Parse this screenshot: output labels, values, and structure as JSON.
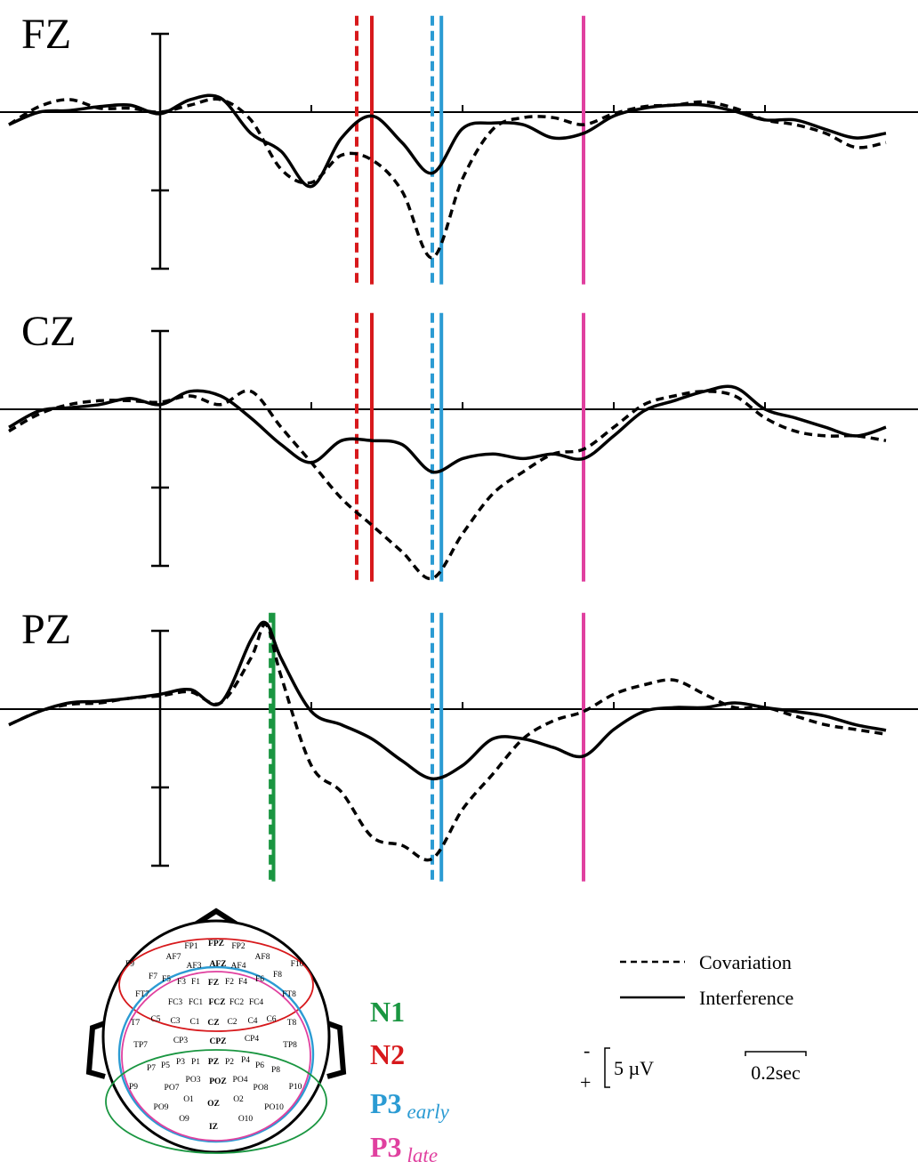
{
  "chart_data": [
    {
      "type": "line",
      "title": "FZ",
      "x": [
        -0.5,
        -0.4,
        -0.3,
        -0.2,
        -0.1,
        0,
        0.1,
        0.2,
        0.3,
        0.4,
        0.5,
        0.6,
        0.7,
        0.8,
        0.9,
        1.0,
        1.1,
        1.2,
        1.3,
        1.4,
        1.5,
        1.6,
        1.7,
        1.8,
        1.9,
        2.0,
        2.1,
        2.2,
        2.3,
        2.4
      ],
      "xlim": [
        -0.5,
        2.5
      ],
      "xticks": [
        0.5,
        1,
        1.5,
        2
      ],
      "ylim": [
        -12.3,
        22
      ],
      "yticks": [
        -10,
        0,
        10,
        20
      ],
      "y_inverted": true,
      "series": [
        {
          "name": "Covariation",
          "color": "#000000",
          "style": "dashed",
          "values": [
            1.6,
            -0.7,
            -1.6,
            -0.5,
            -0.5,
            0,
            -0.9,
            -1.6,
            1.0,
            7.3,
            9.0,
            5.5,
            6.1,
            10.1,
            18.6,
            8.5,
            2.2,
            0.7,
            0.7,
            1.6,
            0.2,
            -0.7,
            -0.9,
            -1.3,
            -0.5,
            1.0,
            1.6,
            2.7,
            4.5,
            3.9
          ]
        },
        {
          "name": "Interference",
          "color": "#000000",
          "style": "solid",
          "values": [
            1.6,
            0,
            -0.2,
            -0.7,
            -0.9,
            0.2,
            -1.6,
            -1.8,
            2.7,
            5.0,
            9.5,
            3.3,
            0.5,
            3.9,
            7.8,
            2.1,
            1.4,
            1.6,
            3.3,
            2.7,
            0.5,
            -0.5,
            -0.9,
            -0.9,
            -0.1,
            1.0,
            1.0,
            2.2,
            3.3,
            2.7
          ]
        }
      ],
      "markers": [
        {
          "x": 0.65,
          "color": "#d7191c",
          "style": "dashed"
        },
        {
          "x": 0.7,
          "color": "#d7191c",
          "style": "solid"
        },
        {
          "x": 0.9,
          "color": "#2b9bd3",
          "style": "dashed"
        },
        {
          "x": 0.93,
          "color": "#2b9bd3",
          "style": "solid"
        },
        {
          "x": 1.4,
          "color": "#e0409f",
          "style": "solid"
        }
      ]
    },
    {
      "type": "line",
      "title": "CZ",
      "x": [
        -0.5,
        -0.4,
        -0.3,
        -0.2,
        -0.1,
        0,
        0.1,
        0.2,
        0.3,
        0.4,
        0.5,
        0.6,
        0.7,
        0.8,
        0.9,
        1.0,
        1.1,
        1.2,
        1.3,
        1.4,
        1.5,
        1.6,
        1.7,
        1.8,
        1.9,
        2.0,
        2.1,
        2.2,
        2.3,
        2.4
      ],
      "xlim": [
        -0.5,
        2.5
      ],
      "xticks": [
        0.5,
        1,
        1.5,
        2
      ],
      "ylim": [
        -12.3,
        22
      ],
      "yticks": [
        -10,
        0,
        10,
        20
      ],
      "y_inverted": true,
      "series": [
        {
          "name": "Covariation",
          "color": "#000000",
          "style": "dashed",
          "values": [
            2.8,
            0.6,
            -0.6,
            -1.1,
            -1.1,
            -0.9,
            -1.7,
            -0.6,
            -2.3,
            2.3,
            6.8,
            11.4,
            14.8,
            18.2,
            21.6,
            15.9,
            10.8,
            8.0,
            5.7,
            5.1,
            2.3,
            -0.6,
            -1.7,
            -2.3,
            -1.7,
            1.1,
            2.8,
            3.4,
            3.4,
            4.0
          ]
        },
        {
          "name": "Interference",
          "color": "#000000",
          "style": "solid",
          "values": [
            2.3,
            0.2,
            -0.2,
            -0.6,
            -1.4,
            -0.6,
            -2.3,
            -1.7,
            1.1,
            4.5,
            6.8,
            4.0,
            4.0,
            4.5,
            8.0,
            6.3,
            5.7,
            6.3,
            5.7,
            6.3,
            3.4,
            0.2,
            -1.1,
            -2.3,
            -2.8,
            0,
            1.1,
            2.3,
            3.4,
            2.3
          ]
        }
      ],
      "markers": [
        {
          "x": 0.65,
          "color": "#d7191c",
          "style": "dashed"
        },
        {
          "x": 0.7,
          "color": "#d7191c",
          "style": "solid"
        },
        {
          "x": 0.9,
          "color": "#2b9bd3",
          "style": "dashed"
        },
        {
          "x": 0.93,
          "color": "#2b9bd3",
          "style": "solid"
        },
        {
          "x": 1.4,
          "color": "#e0409f",
          "style": "solid"
        }
      ]
    },
    {
      "type": "line",
      "title": "PZ",
      "x": [
        -0.5,
        -0.4,
        -0.3,
        -0.2,
        -0.1,
        0,
        0.1,
        0.2,
        0.3,
        0.35,
        0.4,
        0.5,
        0.6,
        0.7,
        0.8,
        0.9,
        1.0,
        1.1,
        1.2,
        1.3,
        1.4,
        1.5,
        1.6,
        1.7,
        1.8,
        1.9,
        2.0,
        2.1,
        2.2,
        2.3,
        2.4
      ],
      "xlim": [
        -0.5,
        2.5
      ],
      "xticks": [
        0.5,
        1,
        1.5,
        2
      ],
      "ylim": [
        -12.3,
        22
      ],
      "yticks": [
        -10,
        0,
        10,
        20
      ],
      "y_inverted": true,
      "series": [
        {
          "name": "Covariation",
          "color": "#000000",
          "style": "dashed",
          "values": [
            2.0,
            0.3,
            -0.6,
            -0.8,
            -1.4,
            -1.7,
            -2.2,
            -0.8,
            -6.5,
            -10.8,
            -4.2,
            7.2,
            10.6,
            16.3,
            17.4,
            19.1,
            12.8,
            8.3,
            3.8,
            1.5,
            0.3,
            -1.9,
            -3.1,
            -3.7,
            -1.9,
            -0.2,
            -0.2,
            0.9,
            2.0,
            2.6,
            3.2
          ]
        },
        {
          "name": "Interference",
          "color": "#000000",
          "style": "solid",
          "values": [
            2.0,
            0.3,
            -0.8,
            -1.0,
            -1.4,
            -1.9,
            -2.5,
            -0.8,
            -8.8,
            -11.0,
            -6.5,
            0.3,
            2.0,
            3.8,
            6.6,
            8.9,
            7.2,
            3.8,
            3.8,
            4.9,
            6.0,
            2.6,
            0.3,
            -0.2,
            -0.2,
            -0.8,
            -0.2,
            0.3,
            0.9,
            2.0,
            2.7
          ]
        }
      ],
      "markers": [
        {
          "x": 0.365,
          "color": "#1a9641",
          "style": "dashed"
        },
        {
          "x": 0.375,
          "color": "#1a9641",
          "style": "solid"
        },
        {
          "x": 0.9,
          "color": "#2b9bd3",
          "style": "dashed"
        },
        {
          "x": 0.93,
          "color": "#2b9bd3",
          "style": "solid"
        },
        {
          "x": 1.4,
          "color": "#e0409f",
          "style": "solid"
        }
      ]
    }
  ],
  "components": [
    {
      "name": "N1",
      "color": "#1a9641"
    },
    {
      "name": "N2",
      "color": "#d7191c"
    },
    {
      "name": "P3",
      "subscript": "early",
      "color": "#2b9bd3"
    },
    {
      "name": "P3",
      "subscript": "late",
      "color": "#e0409f"
    }
  ],
  "scale_bars": {
    "y": {
      "value": 5,
      "label": "5 µV",
      "top": "-",
      "bottom": "+"
    },
    "x": {
      "value": 0.2,
      "label": "0.2sec"
    }
  },
  "electrodes": [
    {
      "label": "FP1"
    },
    {
      "label": "FPZ",
      "bold": true
    },
    {
      "label": "FP2"
    },
    {
      "label": "AF7"
    },
    {
      "label": "AF3"
    },
    {
      "label": "AFZ",
      "bold": true
    },
    {
      "label": "AF4"
    },
    {
      "label": "AF8"
    },
    {
      "label": "F9"
    },
    {
      "label": "F10"
    },
    {
      "label": "F7"
    },
    {
      "label": "F5"
    },
    {
      "label": "F3"
    },
    {
      "label": "F1"
    },
    {
      "label": "FZ",
      "bold": true
    },
    {
      "label": "F2"
    },
    {
      "label": "F4"
    },
    {
      "label": "F6"
    },
    {
      "label": "F8"
    },
    {
      "label": "FT7"
    },
    {
      "label": "FT8"
    },
    {
      "label": "FC3"
    },
    {
      "label": "FC1"
    },
    {
      "label": "FCZ",
      "bold": true
    },
    {
      "label": "FC2"
    },
    {
      "label": "FC4"
    },
    {
      "label": "T7"
    },
    {
      "label": "C5"
    },
    {
      "label": "C3"
    },
    {
      "label": "C1"
    },
    {
      "label": "CZ",
      "bold": true
    },
    {
      "label": "C2"
    },
    {
      "label": "C4"
    },
    {
      "label": "C6"
    },
    {
      "label": "T8"
    },
    {
      "label": "TP7"
    },
    {
      "label": "CP3"
    },
    {
      "label": "CPZ",
      "bold": true
    },
    {
      "label": "CP4"
    },
    {
      "label": "TP8"
    },
    {
      "label": "P7"
    },
    {
      "label": "P5"
    },
    {
      "label": "P3"
    },
    {
      "label": "P1"
    },
    {
      "label": "PZ",
      "bold": true
    },
    {
      "label": "P2"
    },
    {
      "label": "P4"
    },
    {
      "label": "P6"
    },
    {
      "label": "P8"
    },
    {
      "label": "P9"
    },
    {
      "label": "PO7"
    },
    {
      "label": "PO3"
    },
    {
      "label": "POZ",
      "bold": true
    },
    {
      "label": "PO4"
    },
    {
      "label": "PO8"
    },
    {
      "label": "P10"
    },
    {
      "label": "PO9"
    },
    {
      "label": "O1"
    },
    {
      "label": "OZ",
      "bold": true
    },
    {
      "label": "O2"
    },
    {
      "label": "PO10"
    },
    {
      "label": "O9"
    },
    {
      "label": "O10"
    },
    {
      "label": "IZ",
      "bold": true
    }
  ]
}
